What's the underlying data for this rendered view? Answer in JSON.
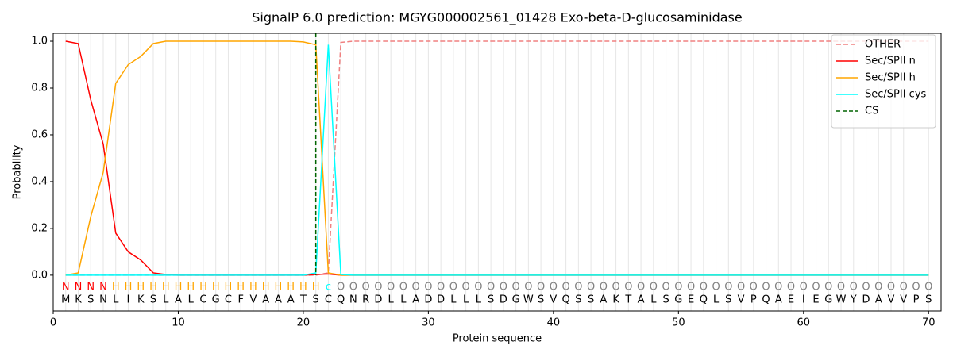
{
  "chart_data": {
    "type": "line",
    "title": "SignalP 6.0 prediction: MGYG000002561_01428 Exo-beta-D-glucosaminidase",
    "xlabel": "Protein sequence",
    "ylabel": "Probability",
    "x": [
      1,
      2,
      3,
      4,
      5,
      6,
      7,
      8,
      9,
      10,
      11,
      12,
      13,
      14,
      15,
      16,
      17,
      18,
      19,
      20,
      21,
      22,
      23,
      24,
      25,
      26,
      27,
      28,
      29,
      30,
      31,
      32,
      33,
      34,
      35,
      36,
      37,
      38,
      39,
      40,
      41,
      42,
      43,
      44,
      45,
      46,
      47,
      48,
      49,
      50,
      51,
      52,
      53,
      54,
      55,
      56,
      57,
      58,
      59,
      60,
      61,
      62,
      63,
      64,
      65,
      66,
      67,
      68,
      69,
      70
    ],
    "series": [
      {
        "name": "OTHER",
        "color": "#f08080",
        "dash": true,
        "values": [
          0,
          0,
          0,
          0,
          0,
          0,
          0,
          0,
          0,
          0,
          0,
          0,
          0,
          0,
          0,
          0,
          0,
          0,
          0,
          0,
          0,
          0.01,
          0.995,
          1,
          1,
          1,
          1,
          1,
          1,
          1,
          1,
          1,
          1,
          1,
          1,
          1,
          1,
          1,
          1,
          1,
          1,
          1,
          1,
          1,
          1,
          1,
          1,
          1,
          1,
          1,
          1,
          1,
          1,
          1,
          1,
          1,
          1,
          1,
          1,
          1,
          1,
          1,
          1,
          1,
          1,
          1,
          1,
          1,
          1,
          1
        ]
      },
      {
        "name": "Sec/SPII n",
        "color": "#ff0000",
        "dash": false,
        "values": [
          1.0,
          0.99,
          0.75,
          0.56,
          0.18,
          0.1,
          0.065,
          0.01,
          0.003,
          0,
          0,
          0,
          0,
          0,
          0,
          0,
          0,
          0,
          0,
          0,
          0.003,
          0.005,
          0,
          0,
          0,
          0,
          0,
          0,
          0,
          0,
          0,
          0,
          0,
          0,
          0,
          0,
          0,
          0,
          0,
          0,
          0,
          0,
          0,
          0,
          0,
          0,
          0,
          0,
          0,
          0,
          0,
          0,
          0,
          0,
          0,
          0,
          0,
          0,
          0,
          0,
          0,
          0,
          0,
          0,
          0,
          0,
          0,
          0,
          0,
          0
        ]
      },
      {
        "name": "Sec/SPII h",
        "color": "#ffa500",
        "dash": false,
        "values": [
          0,
          0.01,
          0.25,
          0.44,
          0.82,
          0.9,
          0.935,
          0.99,
          1.0,
          1.0,
          1.0,
          1.0,
          1.0,
          1.0,
          1.0,
          1.0,
          1.0,
          1.0,
          1.0,
          0.997,
          0.985,
          0.01,
          0,
          0,
          0,
          0,
          0,
          0,
          0,
          0,
          0,
          0,
          0,
          0,
          0,
          0,
          0,
          0,
          0,
          0,
          0,
          0,
          0,
          0,
          0,
          0,
          0,
          0,
          0,
          0,
          0,
          0,
          0,
          0,
          0,
          0,
          0,
          0,
          0,
          0,
          0,
          0,
          0,
          0,
          0,
          0,
          0,
          0,
          0,
          0
        ]
      },
      {
        "name": "Sec/SPII cys",
        "color": "#00ffff",
        "dash": false,
        "values": [
          0,
          0,
          0,
          0,
          0,
          0,
          0,
          0,
          0,
          0,
          0,
          0,
          0,
          0,
          0,
          0,
          0,
          0,
          0,
          0,
          0.01,
          0.985,
          0.003,
          0,
          0,
          0,
          0,
          0,
          0,
          0,
          0,
          0,
          0,
          0,
          0,
          0,
          0,
          0,
          0,
          0,
          0,
          0,
          0,
          0,
          0,
          0,
          0,
          0,
          0,
          0,
          0,
          0,
          0,
          0,
          0,
          0,
          0,
          0,
          0,
          0,
          0,
          0,
          0,
          0,
          0,
          0,
          0,
          0,
          0,
          0
        ]
      }
    ],
    "markers": [
      {
        "name": "CS",
        "color": "#006400",
        "x": 21
      }
    ],
    "residues": [
      "M",
      "K",
      "S",
      "N",
      "L",
      "I",
      "K",
      "S",
      "L",
      "A",
      "L",
      "C",
      "G",
      "C",
      "F",
      "V",
      "A",
      "A",
      "A",
      "T",
      "S",
      "C",
      "Q",
      "N",
      "R",
      "D",
      "L",
      "L",
      "A",
      "D",
      "D",
      "L",
      "L",
      "L",
      "S",
      "D",
      "G",
      "W",
      "S",
      "V",
      "Q",
      "S",
      "S",
      "A",
      "K",
      "T",
      "A",
      "L",
      "S",
      "G",
      "E",
      "Q",
      "L",
      "S",
      "V",
      "P",
      "Q",
      "A",
      "E",
      "I",
      "E",
      "G",
      "W",
      "Y",
      "D",
      "A",
      "V",
      "V",
      "P",
      "S"
    ],
    "regions": [
      "N",
      "N",
      "N",
      "N",
      "H",
      "H",
      "H",
      "H",
      "H",
      "H",
      "H",
      "H",
      "H",
      "H",
      "H",
      "H",
      "H",
      "H",
      "H",
      "H",
      "H",
      "c",
      "O",
      "O",
      "O",
      "O",
      "O",
      "O",
      "O",
      "O",
      "O",
      "O",
      "O",
      "O",
      "O",
      "O",
      "O",
      "O",
      "O",
      "O",
      "O",
      "O",
      "O",
      "O",
      "O",
      "O",
      "O",
      "O",
      "O",
      "O",
      "O",
      "O",
      "O",
      "O",
      "O",
      "O",
      "O",
      "O",
      "O",
      "O",
      "O",
      "O",
      "O",
      "O",
      "O",
      "O",
      "O",
      "O",
      "O",
      "O"
    ],
    "region_colors": {
      "N": "#ff0000",
      "H": "#ffa500",
      "c": "#00ffff",
      "O": "#808080"
    },
    "xlim": [
      0,
      71
    ],
    "ylim": [
      -0.153,
      1.034
    ],
    "xticks": [
      0,
      10,
      20,
      30,
      40,
      50,
      60,
      70
    ],
    "yticks": [
      {
        "value": 0,
        "label": "0.0"
      },
      {
        "value": 0.2,
        "label": "0.2"
      },
      {
        "value": 0.4,
        "label": "0.4"
      },
      {
        "value": 0.6,
        "label": "0.6"
      },
      {
        "value": 0.8,
        "label": "0.8"
      },
      {
        "value": 1.0,
        "label": "1.0"
      }
    ],
    "grid": true,
    "legend": "upper right"
  }
}
